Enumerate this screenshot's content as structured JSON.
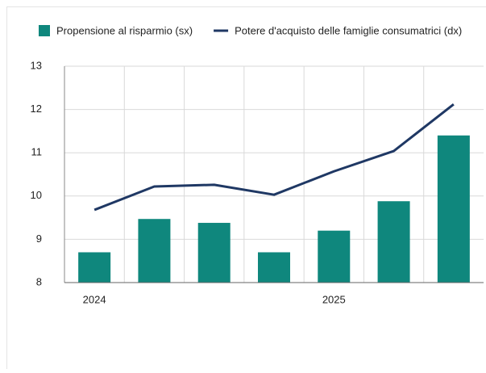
{
  "chart_data": {
    "type": "bar",
    "categories": [
      "2024",
      null,
      null,
      null,
      "2025",
      null,
      null
    ],
    "series": [
      {
        "name": "Propensione al risparmio (sx)",
        "type": "bar",
        "color": "#0f877d",
        "values": [
          8.7,
          9.47,
          9.38,
          8.7,
          9.2,
          9.88,
          11.4
        ]
      },
      {
        "name": "Potere d'acquisto delle famiglie consumatrici (dx)",
        "type": "line",
        "color": "#1f3864",
        "values": [
          9.68,
          10.22,
          10.26,
          10.03,
          10.57,
          11.04,
          12.12
        ]
      }
    ],
    "ylim": [
      8,
      13
    ],
    "yticks": [
      8,
      9,
      10,
      11,
      12,
      13
    ],
    "grid": true
  }
}
